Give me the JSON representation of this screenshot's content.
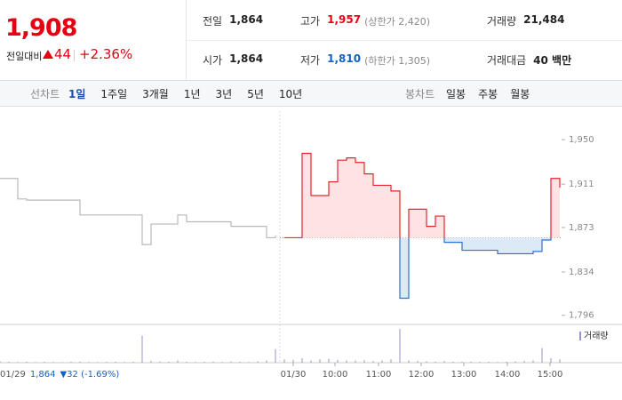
{
  "quote": {
    "price": "1,908",
    "change_label": "전일대비",
    "change": "44",
    "rate": "+2.36%"
  },
  "info": {
    "rows": [
      [
        {
          "label": "전일",
          "value": "1,864"
        },
        {
          "label": "고가",
          "value": "1,957",
          "note": "(상한가 2,420)"
        },
        {
          "label": "거래량",
          "value": "21,484"
        }
      ],
      [
        {
          "label": "시가",
          "value": "1,864"
        },
        {
          "label": "저가",
          "value": "1,810",
          "note": "(하한가 1,305)"
        },
        {
          "label": "거래대금",
          "value": "40 백만"
        }
      ]
    ]
  },
  "tabs": {
    "line_label": "선차트",
    "line": [
      "1일",
      "1주일",
      "3개월",
      "1년",
      "3년",
      "5년",
      "10년"
    ],
    "selected": "1일",
    "candle_label": "봉차트",
    "candle": [
      "일봉",
      "주봉",
      "월봉"
    ]
  },
  "chart_data": {
    "type": "line",
    "baseline": 1864,
    "ylim": [
      1788,
      1975
    ],
    "yticks": [
      {
        "value": 1950,
        "label": "1,950"
      },
      {
        "value": 1911,
        "label": "1,911"
      },
      {
        "value": 1873,
        "label": "1,873"
      },
      {
        "value": 1834,
        "label": "1,834"
      },
      {
        "value": 1796,
        "label": "1,796"
      }
    ],
    "xlim": [
      0,
      63
    ],
    "xticks": [
      {
        "value": 33,
        "label": "01/30"
      },
      {
        "value": 37.7,
        "label": "10:00"
      },
      {
        "value": 42.6,
        "label": "11:00"
      },
      {
        "value": 47.4,
        "label": "12:00"
      },
      {
        "value": 52.2,
        "label": "13:00"
      },
      {
        "value": 57.1,
        "label": "14:00"
      },
      {
        "value": 61.9,
        "label": "15:00"
      }
    ],
    "series": [
      {
        "color": "#b9b9b9",
        "values": [
          1916,
          1916,
          1898,
          1897,
          1897,
          1897,
          1897,
          1897,
          1897,
          1884,
          1884,
          1884,
          1884,
          1884,
          1884,
          1884,
          1858,
          1876,
          1876,
          1876,
          1884,
          1878,
          1878,
          1878,
          1878,
          1878,
          1874,
          1874,
          1874,
          1874,
          1864,
          1866,
          null,
          null,
          null,
          null,
          null,
          null,
          null,
          null,
          null,
          null,
          null,
          null,
          null,
          null,
          null,
          null,
          null,
          null,
          null,
          null,
          null,
          null,
          null,
          null,
          null,
          null,
          null,
          null,
          null,
          null,
          null,
          null
        ]
      },
      {
        "up_color": "#e8242b",
        "down_color": "#2a73d0",
        "values": [
          null,
          null,
          null,
          null,
          null,
          null,
          null,
          null,
          null,
          null,
          null,
          null,
          null,
          null,
          null,
          null,
          null,
          null,
          null,
          null,
          null,
          null,
          null,
          null,
          null,
          null,
          null,
          null,
          null,
          null,
          null,
          null,
          1864,
          1864,
          1938,
          1901,
          1901,
          1913,
          1932,
          1934,
          1930,
          1920,
          1910,
          1910,
          1905,
          1811,
          1889,
          1889,
          1874,
          1883,
          1860,
          1860,
          1853,
          1853,
          1853,
          1853,
          1850,
          1850,
          1850,
          1850,
          1852,
          1862,
          1916,
          1908
        ]
      }
    ],
    "volume": {
      "name": "거래량",
      "color": "#9a8fc6",
      "ylim": [
        0,
        3000
      ],
      "values": [
        120,
        80,
        60,
        90,
        50,
        70,
        60,
        40,
        80,
        100,
        60,
        50,
        70,
        90,
        60,
        80,
        2400,
        150,
        100,
        90,
        200,
        80,
        60,
        70,
        90,
        60,
        100,
        80,
        60,
        120,
        200,
        1200,
        300,
        250,
        400,
        200,
        300,
        350,
        250,
        200,
        180,
        220,
        150,
        200,
        300,
        3000,
        200,
        150,
        120,
        100,
        150,
        90,
        80,
        100,
        70,
        80,
        60,
        90,
        120,
        150,
        200,
        1300,
        400,
        300
      ]
    },
    "footer": {
      "date": "01/29",
      "price": "1,864",
      "change": "▼32 (-1.69%)"
    }
  }
}
